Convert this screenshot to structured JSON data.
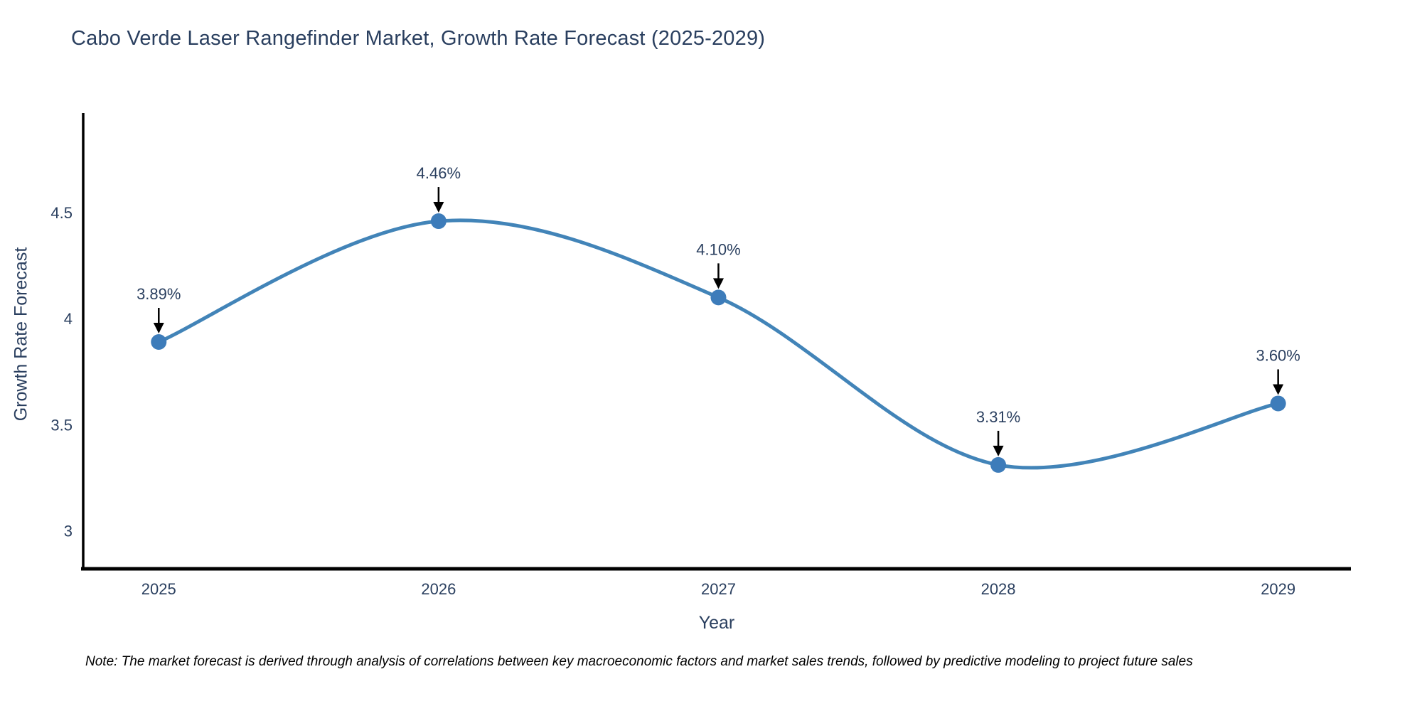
{
  "title": "Cabo Verde Laser Rangefinder Market, Growth Rate Forecast (2025-2029)",
  "note": "Note: The market forecast is derived through analysis of correlations between key macroeconomic factors and market sales trends, followed by predictive modeling to project future sales",
  "chart_data": {
    "type": "line",
    "line_shape": "spline",
    "title": "Cabo Verde Laser Rangefinder Market, Growth Rate Forecast (2025-2029)",
    "xlabel": "Year",
    "ylabel": "Growth Rate Forecast",
    "x": [
      2025,
      2026,
      2027,
      2028,
      2029
    ],
    "values": [
      3.89,
      4.46,
      4.1,
      3.31,
      3.6
    ],
    "point_labels": [
      "3.89%",
      "4.46%",
      "4.10%",
      "3.31%",
      "3.60%"
    ],
    "xtick_labels": [
      "2025",
      "2026",
      "2027",
      "2028",
      "2029"
    ],
    "yticks": [
      3,
      3.5,
      4,
      4.5
    ],
    "ytick_labels": [
      "3",
      "3.5",
      "4",
      "4.5"
    ],
    "xlim": [
      2024.73,
      2029.26
    ],
    "ylim": [
      2.82,
      4.97
    ],
    "grid": false,
    "legend": false,
    "annotations": "value labels above each point with downward black arrows",
    "colors": {
      "line": "#4284b8",
      "marker": "#3d7cba",
      "axis": "#000000",
      "text": "#2a3f5f",
      "annotation_arrow": "#000000",
      "note_text": "#000000",
      "background": "#ffffff"
    }
  }
}
